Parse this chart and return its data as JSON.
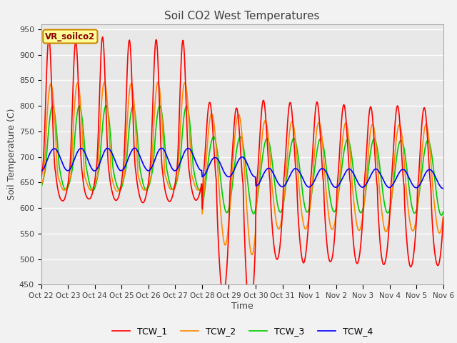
{
  "title": "Soil CO2 West Temperatures",
  "xlabel": "Time",
  "ylabel": "Soil Temperature (C)",
  "ylim": [
    450,
    960
  ],
  "yticks": [
    450,
    500,
    550,
    600,
    650,
    700,
    750,
    800,
    850,
    900,
    950
  ],
  "annotation_text": "VR_soilco2",
  "annotation_bg": "#FFFF99",
  "annotation_border": "#CC8800",
  "annotation_text_color": "#880000",
  "series_colors": {
    "TCW_1": "#FF0000",
    "TCW_2": "#FF8800",
    "TCW_3": "#00CC00",
    "TCW_4": "#0000FF"
  },
  "x_tick_labels": [
    "Oct 22",
    "Oct 23",
    "Oct 24",
    "Oct 25",
    "Oct 26",
    "Oct 27",
    "Oct 28",
    "Oct 29",
    "Oct 30",
    "Oct 31",
    "Nov 1",
    "Nov 2",
    "Nov 3",
    "Nov 4",
    "Nov 5",
    "Nov 6"
  ],
  "plot_bg_color": "#E8E8E8",
  "fig_bg_color": "#F2F2F2",
  "grid_color": "#FFFFFF",
  "title_color": "#404040",
  "axis_label_color": "#404040",
  "tick_label_color": "#404040",
  "linewidth": 1.2
}
